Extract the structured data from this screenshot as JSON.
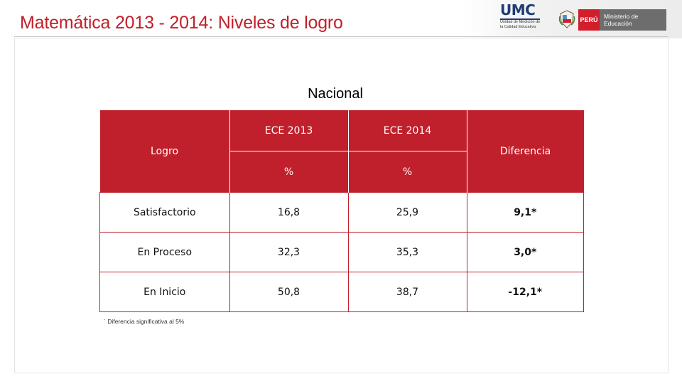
{
  "header": {
    "title": "Matemática 2013 - 2014: Niveles de logro",
    "umc_logo_text": "UMC",
    "umc_logo_subtitle": "Unidad de Medición de la Calidad Educativa",
    "peru_badge": "PERÚ",
    "ministry_name": "Ministerio de Educación"
  },
  "subtitle": "Nacional",
  "table": {
    "header": {
      "logro": "Logro",
      "ece_2013": "ECE  2013",
      "ece_2014": "ECE  2014",
      "pct_2013": "%",
      "pct_2014": "%",
      "diferencia": "Diferencia"
    },
    "rows": [
      {
        "label": "Satisfactorio",
        "v2013": "16,8",
        "v2014": "25,9",
        "diff": "9,1*"
      },
      {
        "label": "En Proceso",
        "v2013": "32,3",
        "v2014": "35,3",
        "diff": "3,0*"
      },
      {
        "label": "En Inicio",
        "v2013": "50,8",
        "v2014": "38,7",
        "diff": "-12,1*"
      }
    ]
  },
  "footnote": "´ Diferencia significativa al 5%",
  "colors": {
    "accent": "#c0202b",
    "umc_blue": "#1f3c74"
  }
}
